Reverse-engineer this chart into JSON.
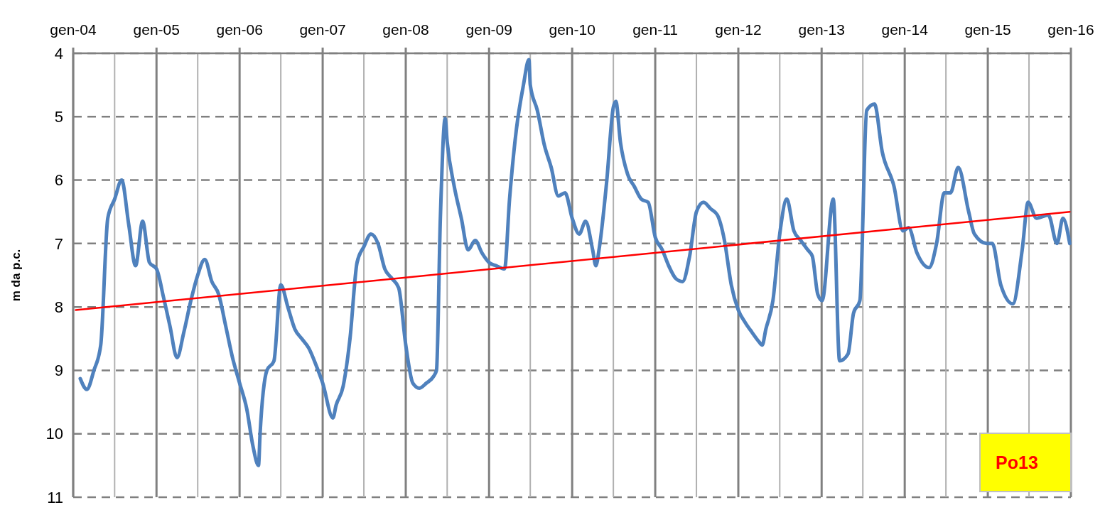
{
  "chart_data": {
    "type": "line",
    "ylabel": "m da p.c.",
    "annotations": [
      "Po13"
    ],
    "xlim": [
      "2004-01",
      "2016-01"
    ],
    "xticks": [
      {
        "value": "2004-01",
        "label": "gen-04"
      },
      {
        "value": "2004-07",
        "label": null
      },
      {
        "value": "2005-01",
        "label": "gen-05"
      },
      {
        "value": "2005-07",
        "label": null
      },
      {
        "value": "2006-01",
        "label": "gen-06"
      },
      {
        "value": "2006-07",
        "label": null
      },
      {
        "value": "2007-01",
        "label": "gen-07"
      },
      {
        "value": "2007-07",
        "label": null
      },
      {
        "value": "2008-01",
        "label": "gen-08"
      },
      {
        "value": "2008-07",
        "label": null
      },
      {
        "value": "2009-01",
        "label": "gen-09"
      },
      {
        "value": "2009-07",
        "label": null
      },
      {
        "value": "2010-01",
        "label": "gen-10"
      },
      {
        "value": "2010-07",
        "label": null
      },
      {
        "value": "2011-01",
        "label": "gen-11"
      },
      {
        "value": "2011-07",
        "label": null
      },
      {
        "value": "2012-01",
        "label": "gen-12"
      },
      {
        "value": "2012-07",
        "label": null
      },
      {
        "value": "2013-01",
        "label": "gen-13"
      },
      {
        "value": "2013-07",
        "label": null
      },
      {
        "value": "2014-01",
        "label": "gen-14"
      },
      {
        "value": "2014-07",
        "label": null
      },
      {
        "value": "2015-01",
        "label": "gen-15"
      },
      {
        "value": "2015-07",
        "label": null
      },
      {
        "value": "2016-01",
        "label": "gen-16"
      }
    ],
    "ylim": [
      11,
      4
    ],
    "yticks": [
      4,
      5,
      6,
      7,
      8,
      9,
      10,
      11
    ],
    "grid": true,
    "series": [
      {
        "color": "#4f81bd",
        "x": [
          "2004-02",
          "2004-03",
          "2004-04",
          "2004-05",
          "2004-06",
          "2004-07",
          "2004-08",
          "2004-09",
          "2004-10",
          "2004-11",
          "2004-12",
          "2005-01",
          "2005-02",
          "2005-03",
          "2005-04",
          "2005-05",
          "2005-06",
          "2005-07",
          "2005-08",
          "2005-09",
          "2005-10",
          "2005-11",
          "2005-12",
          "2006-01",
          "2006-02",
          "2006-03",
          "2006-03-25",
          "2006-04",
          "2006-05",
          "2006-06",
          "2006-07",
          "2006-08",
          "2006-09",
          "2006-10",
          "2006-11",
          "2006-12",
          "2007-01",
          "2007-02-15",
          "2007-03",
          "2007-04",
          "2007-05",
          "2007-06",
          "2007-07",
          "2007-08",
          "2007-09",
          "2007-10",
          "2007-11",
          "2007-12",
          "2008-01",
          "2008-02",
          "2008-03",
          "2008-04",
          "2008-05",
          "2008-05-15",
          "2008-06",
          "2008-06-22",
          "2008-07",
          "2008-08",
          "2008-09",
          "2008-10",
          "2008-11",
          "2008-12",
          "2009-01",
          "2009-02",
          "2009-03-10",
          "2009-04",
          "2009-05",
          "2009-06",
          "2009-06-25",
          "2009-07",
          "2009-08",
          "2009-09",
          "2009-10",
          "2009-11",
          "2009-12",
          "2010-01",
          "2010-02",
          "2010-03",
          "2010-04",
          "2010-04-15",
          "2010-05",
          "2010-06",
          "2010-07",
          "2010-07-12",
          "2010-08",
          "2010-09",
          "2010-10",
          "2010-11",
          "2010-12",
          "2011-01",
          "2011-02",
          "2011-03",
          "2011-04",
          "2011-05",
          "2011-06",
          "2011-07",
          "2011-08",
          "2011-09",
          "2011-10",
          "2011-11",
          "2011-12",
          "2012-01",
          "2012-02",
          "2012-03",
          "2012-04",
          "2012-04-15",
          "2012-05",
          "2012-06",
          "2012-07",
          "2012-08",
          "2012-09",
          "2012-10",
          "2012-11",
          "2012-11-21",
          "2012-12-15",
          "2013-01-03",
          "2013-02-21",
          "2013-03-21",
          "2013-04-27",
          "2013-05-21",
          "2013-06-18",
          "2013-07-18",
          "2013-08-21",
          "2013-09-24",
          "2013-11-15",
          "2013-12-24",
          "2014-01-18",
          "2014-02-24",
          "2014-04-18",
          "2014-05-21",
          "2014-06-24",
          "2014-07-21",
          "2014-08-24",
          "2014-10-09",
          "2014-11-03",
          "2014-12-27",
          "2015-01-21",
          "2015-02-27",
          "2015-04-21",
          "2015-06-01",
          "2015-06-27",
          "2015-08-03",
          "2015-09-24",
          "2015-11-01",
          "2015-11-27",
          "2015-12-27"
        ],
        "values": [
          9.13,
          9.3,
          9.0,
          8.6,
          6.6,
          6.3,
          6.0,
          6.7,
          7.35,
          6.65,
          7.3,
          7.4,
          7.85,
          8.3,
          8.8,
          8.4,
          7.9,
          7.5,
          7.25,
          7.6,
          7.8,
          8.3,
          8.8,
          9.2,
          9.6,
          10.2,
          10.5,
          10.0,
          9.0,
          8.85,
          7.65,
          8.0,
          8.35,
          8.5,
          8.65,
          8.9,
          9.2,
          9.75,
          9.55,
          9.25,
          8.5,
          7.3,
          7.05,
          6.85,
          7.0,
          7.4,
          7.55,
          7.7,
          8.6,
          9.2,
          9.28,
          9.2,
          9.1,
          9.0,
          6.6,
          5.03,
          5.4,
          6.1,
          6.6,
          7.1,
          6.95,
          7.15,
          7.3,
          7.35,
          7.4,
          6.3,
          5.2,
          4.5,
          4.1,
          4.5,
          4.9,
          5.45,
          5.8,
          6.25,
          6.2,
          6.6,
          6.85,
          6.65,
          7.1,
          7.35,
          7.05,
          6.05,
          4.85,
          4.76,
          5.4,
          5.9,
          6.1,
          6.3,
          6.35,
          6.9,
          7.1,
          7.35,
          7.55,
          7.6,
          7.2,
          6.5,
          6.35,
          6.45,
          6.55,
          6.95,
          7.65,
          8.05,
          8.25,
          8.4,
          8.55,
          8.6,
          8.35,
          7.9,
          6.85,
          6.3,
          6.8,
          6.95,
          7.1,
          7.2,
          7.8,
          7.9,
          6.3,
          8.85,
          8.74,
          8.1,
          7.9,
          4.9,
          4.8,
          5.55,
          6.1,
          6.8,
          6.75,
          7.15,
          7.38,
          7.0,
          6.2,
          6.2,
          5.8,
          6.5,
          6.85,
          7.0,
          7.0,
          7.65,
          7.95,
          7.1,
          6.35,
          6.6,
          6.55,
          7.0,
          6.6,
          7.0
        ]
      },
      {
        "type": "line",
        "color": "#ff0000",
        "x": [
          "2004-01-12",
          "2015-12-27"
        ],
        "values": [
          8.05,
          6.5
        ]
      }
    ]
  }
}
